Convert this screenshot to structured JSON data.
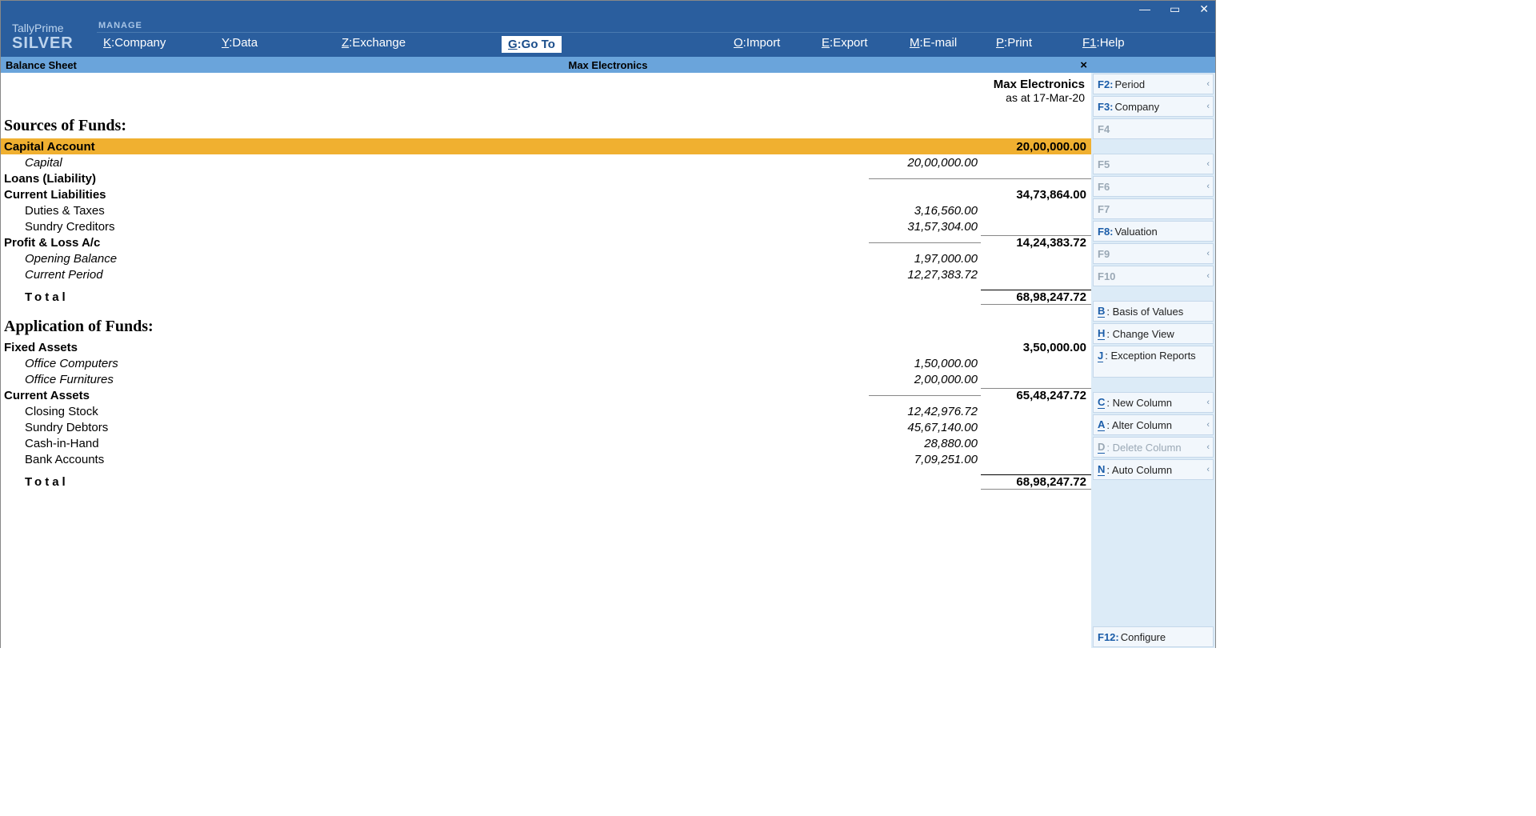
{
  "app": {
    "name": "TallyPrime",
    "edition": "SILVER",
    "manage": "MANAGE"
  },
  "menu": {
    "company": {
      "key": "K",
      "label": "Company"
    },
    "data": {
      "key": "Y",
      "label": "Data"
    },
    "exchange": {
      "key": "Z",
      "label": "Exchange"
    },
    "goto": {
      "key": "G",
      "label": "Go To"
    },
    "import": {
      "key": "O",
      "label": "Import"
    },
    "export": {
      "key": "E",
      "label": "Export"
    },
    "email": {
      "key": "M",
      "label": "E-mail"
    },
    "print": {
      "key": "P",
      "label": "Print"
    },
    "help": {
      "key": "F1",
      "label": "Help"
    }
  },
  "subbar": {
    "title": "Balance Sheet",
    "company": "Max Electronics"
  },
  "header": {
    "company": "Max Electronics",
    "asat": "as at 17-Mar-20"
  },
  "sections": {
    "sources": {
      "title": "Sources of Funds:",
      "rows": {
        "capital_account": {
          "label": "Capital Account",
          "main": "20,00,000.00"
        },
        "capital": {
          "label": "Capital",
          "sub": "20,00,000.00"
        },
        "loans": {
          "label": "Loans (Liability)"
        },
        "current_liab": {
          "label": "Current Liabilities",
          "main": "34,73,864.00"
        },
        "duties": {
          "label": "Duties & Taxes",
          "sub": "3,16,560.00"
        },
        "creditors": {
          "label": "Sundry Creditors",
          "sub": "31,57,304.00"
        },
        "pl": {
          "label": "Profit & Loss A/c",
          "main": "14,24,383.72"
        },
        "opening": {
          "label": "Opening Balance",
          "sub": "1,97,000.00"
        },
        "current_period": {
          "label": "Current Period",
          "sub": "12,27,383.72"
        },
        "total": {
          "label": "Total",
          "main": "68,98,247.72"
        }
      }
    },
    "application": {
      "title": "Application of Funds:",
      "rows": {
        "fixed_assets": {
          "label": "Fixed Assets",
          "main": "3,50,000.00"
        },
        "office_comp": {
          "label": "Office Computers",
          "sub": "1,50,000.00"
        },
        "office_furn": {
          "label": "Office Furnitures",
          "sub": "2,00,000.00"
        },
        "current_assets": {
          "label": "Current Assets",
          "main": "65,48,247.72"
        },
        "closing": {
          "label": "Closing Stock",
          "sub": "12,42,976.72"
        },
        "debtors": {
          "label": "Sundry Debtors",
          "sub": "45,67,140.00"
        },
        "cash": {
          "label": "Cash-in-Hand",
          "sub": "28,880.00"
        },
        "bank": {
          "label": "Bank Accounts",
          "sub": "7,09,251.00"
        },
        "total": {
          "label": "Total",
          "main": "68,98,247.72"
        }
      }
    }
  },
  "sidebar": {
    "f2": {
      "key": "F2:",
      "label": "Period"
    },
    "f3": {
      "key": "F3:",
      "label": "Company"
    },
    "f4": {
      "key": "F4"
    },
    "f5": {
      "key": "F5"
    },
    "f6": {
      "key": "F6"
    },
    "f7": {
      "key": "F7"
    },
    "f8": {
      "key": "F8:",
      "label": "Valuation"
    },
    "f9": {
      "key": "F9"
    },
    "f10": {
      "key": "F10"
    },
    "b": {
      "key": "B",
      "label": ": Basis of Values"
    },
    "h": {
      "key": "H",
      "label": ": Change View"
    },
    "j": {
      "key": "J",
      "label": ": Exception Reports"
    },
    "c": {
      "key": "C",
      "label": ": New Column"
    },
    "a": {
      "key": "A",
      "label": ": Alter Column"
    },
    "d": {
      "key": "D",
      "label": ": Delete Column"
    },
    "n": {
      "key": "N",
      "label": ": Auto Column"
    },
    "f12": {
      "key": "F12:",
      "label": "Configure"
    }
  }
}
